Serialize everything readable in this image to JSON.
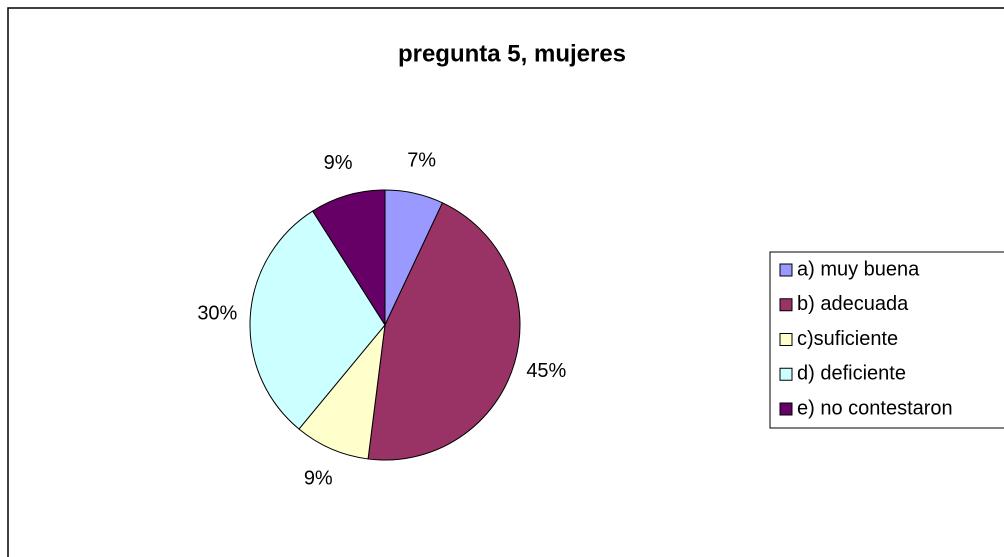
{
  "chart_data": {
    "type": "pie",
    "title": "pregunta 5, mujeres",
    "categories": [
      "a) muy buena",
      "b) adecuada",
      "c)suficiente",
      "d) deficiente",
      "e) no contestaron"
    ],
    "values": [
      7,
      45,
      9,
      30,
      9
    ],
    "value_labels": [
      "7%",
      "45%",
      "9%",
      "30%",
      "9%"
    ],
    "colors": [
      "#9999ff",
      "#993366",
      "#ffffcc",
      "#ccffff",
      "#660066"
    ],
    "legend": "right"
  }
}
